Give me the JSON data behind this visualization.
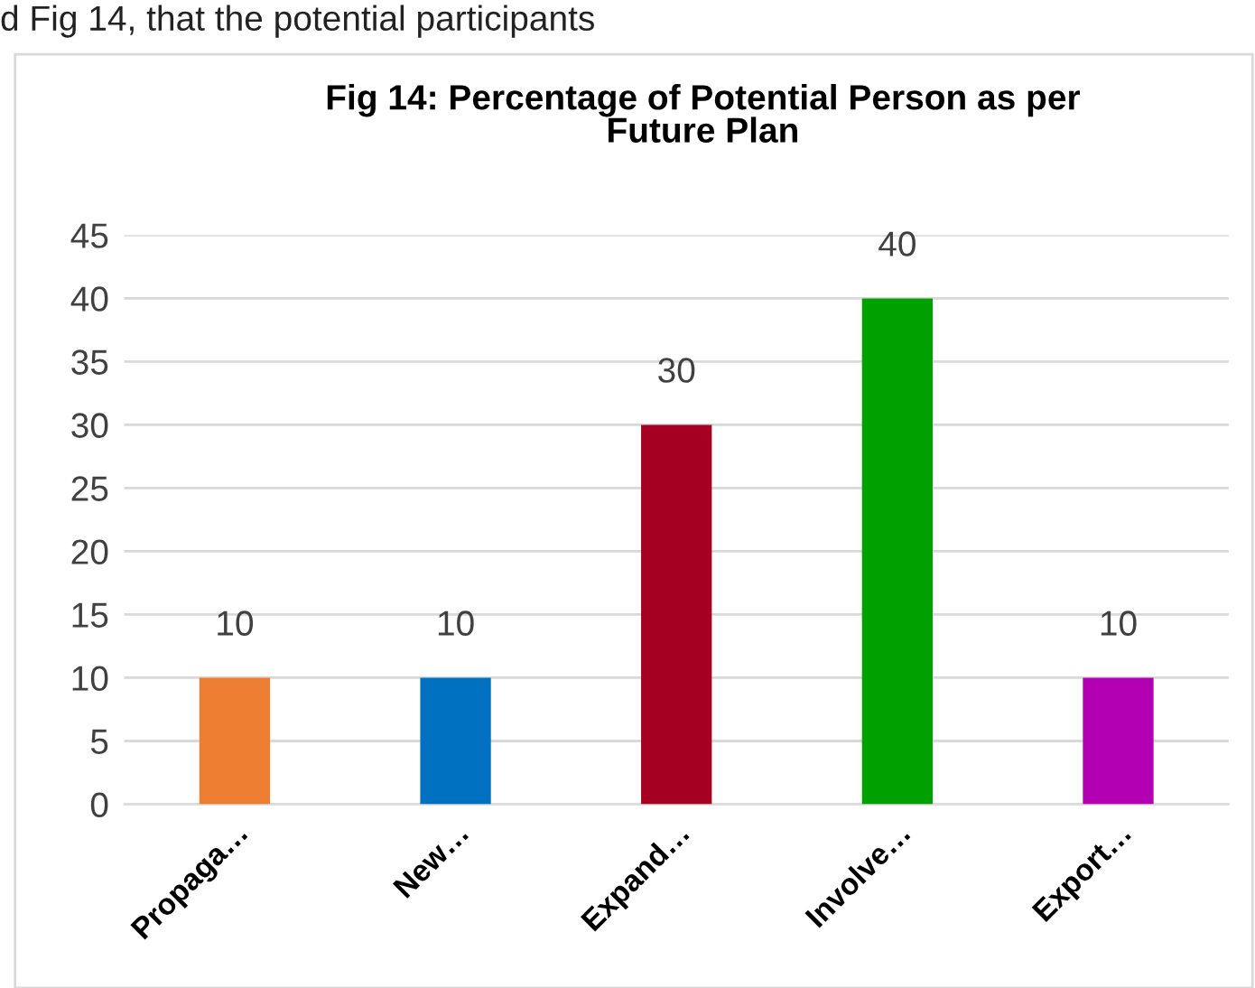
{
  "chart_data": {
    "type": "bar",
    "title": "Fig 14: Percentage of Potential Person as per\nFuture Plan",
    "annotations": [
      "d Fig 14, that the potential participants"
    ],
    "categories": [
      "Propaga…",
      "New…",
      "Expand…",
      "Involve…",
      "Export…"
    ],
    "values": [
      10,
      10,
      30,
      40,
      10
    ],
    "colors": [
      "#ed7d31",
      "#0070c0",
      "#a50021",
      "#00a000",
      "#b300b3"
    ],
    "ylim": [
      0,
      45
    ],
    "yticks": [
      0,
      5,
      10,
      15,
      20,
      25,
      30,
      35,
      40,
      45
    ],
    "grid": "y",
    "data_labels": true
  }
}
